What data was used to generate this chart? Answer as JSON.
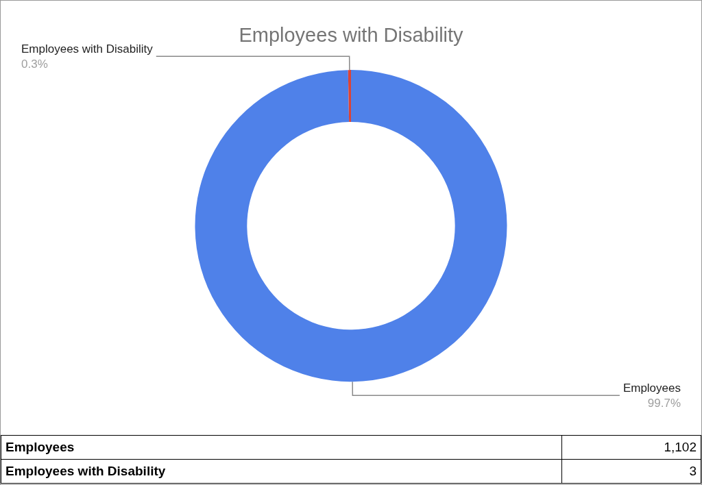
{
  "chart_data": {
    "type": "donut",
    "title": "Employees with Disability",
    "categories": [
      "Employees",
      "Employees with Disability"
    ],
    "values": [
      99.7,
      0.3
    ],
    "annotations": [
      "1,102",
      "3"
    ],
    "colors": [
      "#4f81e9",
      "#db4437"
    ],
    "value_labels": [
      "99.7%",
      "0.3%"
    ]
  }
}
